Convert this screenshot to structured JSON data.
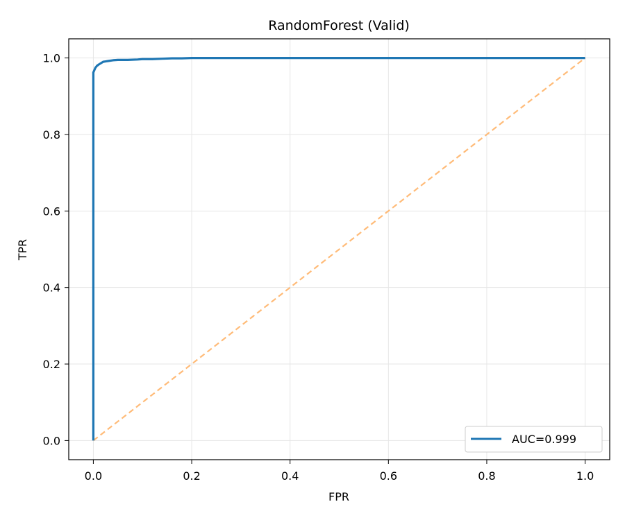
{
  "chart_data": {
    "type": "line",
    "title": "RandomForest (Valid)",
    "xlabel": "FPR",
    "ylabel": "TPR",
    "xlim": [
      -0.05,
      1.05
    ],
    "ylim": [
      -0.05,
      1.05
    ],
    "xticks": [
      0.0,
      0.2,
      0.4,
      0.6,
      0.8,
      1.0
    ],
    "yticks": [
      0.0,
      0.2,
      0.4,
      0.6,
      0.8,
      1.0
    ],
    "xtick_labels": [
      "0.0",
      "0.2",
      "0.4",
      "0.6",
      "0.8",
      "1.0"
    ],
    "ytick_labels": [
      "0.0",
      "0.2",
      "0.4",
      "0.6",
      "0.8",
      "1.0"
    ],
    "grid": true,
    "legend_position": "lower-right",
    "series": [
      {
        "name": "AUC=0.999",
        "color": "#1f77b4",
        "style": "solid",
        "x": [
          0.0,
          0.0,
          0.002,
          0.004,
          0.007,
          0.01,
          0.015,
          0.02,
          0.025,
          0.03,
          0.04,
          0.05,
          0.07,
          0.09,
          0.1,
          0.12,
          0.14,
          0.16,
          0.18,
          0.2,
          0.3,
          0.5,
          0.8,
          1.0
        ],
        "y": [
          0.0,
          0.962,
          0.968,
          0.974,
          0.979,
          0.982,
          0.986,
          0.99,
          0.991,
          0.992,
          0.994,
          0.995,
          0.995,
          0.996,
          0.997,
          0.997,
          0.998,
          0.999,
          0.999,
          1.0,
          1.0,
          1.0,
          1.0,
          1.0
        ]
      },
      {
        "name": "",
        "color": "#ffbb78",
        "style": "dashed",
        "x": [
          0.0,
          1.0
        ],
        "y": [
          0.0,
          1.0
        ]
      }
    ]
  }
}
